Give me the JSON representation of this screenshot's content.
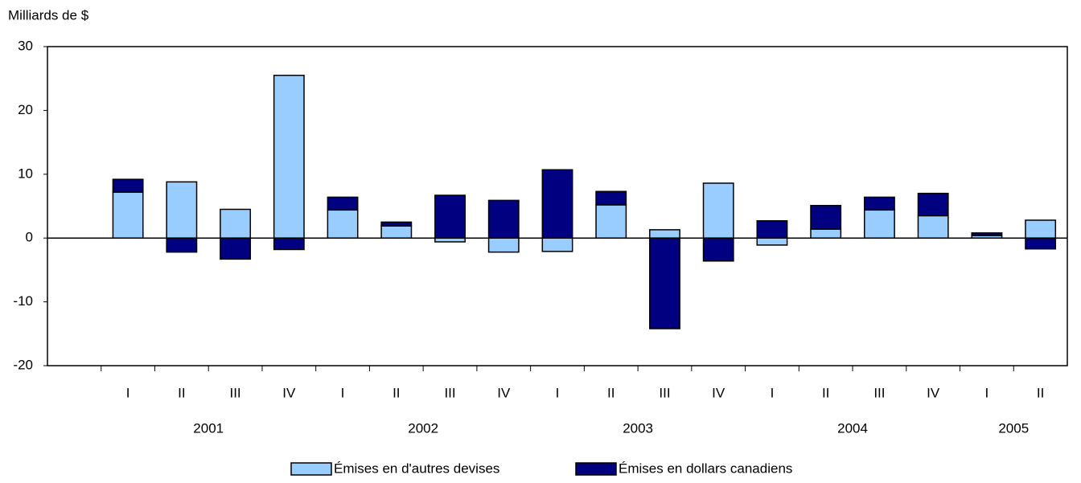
{
  "chart_data": {
    "type": "stacked_bar",
    "y_axis_label": "Milliards de $",
    "categories": [
      null,
      "I",
      "II",
      "III",
      "IV",
      "I",
      "II",
      "III",
      "IV",
      "I",
      "II",
      "III",
      "IV",
      "I",
      "II",
      "III",
      "IV",
      "I",
      "II"
    ],
    "groups": [
      {
        "label": "2001",
        "size": 4
      },
      {
        "label": "2002",
        "size": 4
      },
      {
        "label": "2003",
        "size": 4
      },
      {
        "label": "2004",
        "size": 4
      },
      {
        "label": "2005",
        "size": 2
      }
    ],
    "series": [
      {
        "name": "Émises en d'autres devises",
        "color": "#99ccff",
        "values": [
          null,
          7.2,
          8.8,
          4.5,
          25.5,
          4.4,
          1.9,
          -0.6,
          -2.2,
          -2.1,
          5.2,
          1.3,
          8.6,
          -1.1,
          1.4,
          4.4,
          3.5,
          0.4,
          2.8
        ]
      },
      {
        "name": "Émises en dollars canadiens",
        "color": "#000080",
        "values": [
          null,
          2.0,
          -2.2,
          -3.3,
          -1.8,
          2.0,
          0.6,
          6.7,
          5.9,
          10.7,
          2.1,
          -14.2,
          -3.6,
          2.7,
          3.7,
          2.0,
          3.5,
          0.4,
          -1.7
        ]
      }
    ],
    "ylim": [
      -20,
      30
    ],
    "yticks": [
      -20,
      -10,
      0,
      10,
      20,
      30
    ],
    "grid": false,
    "legend": "bottom"
  }
}
